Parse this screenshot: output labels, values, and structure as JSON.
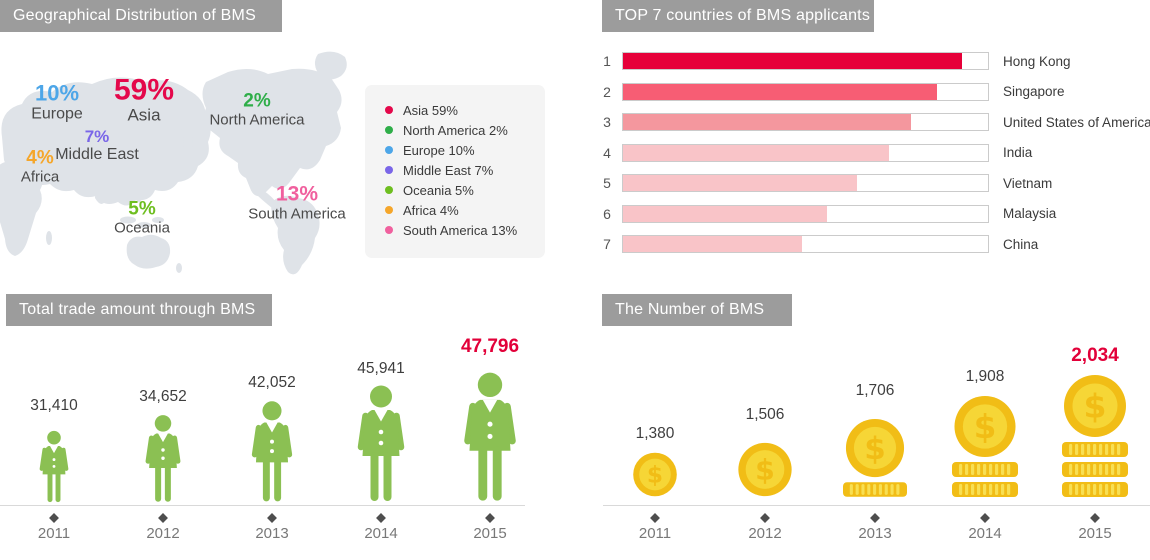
{
  "panels": {
    "geo": {
      "title": "Geographical Distribution of BMS",
      "map_labels": [
        {
          "name": "Europe",
          "pct": "10%",
          "color": "#4da6e8"
        },
        {
          "name": "Asia",
          "pct": "59%",
          "color": "#e4084b"
        },
        {
          "name": "North America",
          "pct": "2%",
          "color": "#2fae49"
        },
        {
          "name": "Middle East",
          "pct": "7%",
          "color": "#7a66e8"
        },
        {
          "name": "Africa",
          "pct": "4%",
          "color": "#f5a62a"
        },
        {
          "name": "Oceania",
          "pct": "5%",
          "color": "#6ebe20"
        },
        {
          "name": "South America",
          "pct": "13%",
          "color": "#f0609e"
        }
      ],
      "legend": [
        {
          "label": "Asia 59%",
          "color": "#e4084b"
        },
        {
          "label": "North America 2%",
          "color": "#2fae49"
        },
        {
          "label": "Europe 10%",
          "color": "#4da6e8"
        },
        {
          "label": "Middle East 7%",
          "color": "#7a66e8"
        },
        {
          "label": "Oceania 5%",
          "color": "#6ebe20"
        },
        {
          "label": "Africa 4%",
          "color": "#f5a62a"
        },
        {
          "label": "South America 13%",
          "color": "#f0609e"
        }
      ]
    },
    "top7": {
      "title": "TOP 7 countries of BMS applicants",
      "rows": [
        {
          "rank": "1",
          "country": "Hong Kong"
        },
        {
          "rank": "2",
          "country": "Singapore"
        },
        {
          "rank": "3",
          "country": "United States of America"
        },
        {
          "rank": "4",
          "country": "India"
        },
        {
          "rank": "5",
          "country": "Vietnam"
        },
        {
          "rank": "6",
          "country": "Malaysia"
        },
        {
          "rank": "7",
          "country": "China"
        }
      ]
    },
    "trade": {
      "title": "Total trade amount through BMS",
      "columns": [
        {
          "year": "2011",
          "value": "31,410",
          "highlight": false
        },
        {
          "year": "2012",
          "value": "34,652",
          "highlight": false
        },
        {
          "year": "2013",
          "value": "42,052",
          "highlight": false
        },
        {
          "year": "2014",
          "value": "45,941",
          "highlight": false
        },
        {
          "year": "2015",
          "value": "47,796",
          "highlight": true
        }
      ]
    },
    "number": {
      "title": "The Number of BMS",
      "columns": [
        {
          "year": "2011",
          "value": "1,380",
          "highlight": false
        },
        {
          "year": "2012",
          "value": "1,506",
          "highlight": false
        },
        {
          "year": "2013",
          "value": "1,706",
          "highlight": false
        },
        {
          "year": "2014",
          "value": "1,908",
          "highlight": false
        },
        {
          "year": "2015",
          "value": "2,034",
          "highlight": true
        }
      ]
    }
  },
  "icons": {
    "person": "person-pictogram-icon",
    "coin": "dollar-coin-icon",
    "coin_stack": "coin-stack-icon",
    "diamond": "diamond-marker-icon",
    "legend_dot": "legend-dot-icon"
  },
  "colors": {
    "title_bar_bg": "#9c9c9c",
    "map_fill": "#dfe3e8",
    "legend_bg": "#f4f4f4",
    "accent_red": "#e20039",
    "person_green": "#8bc053",
    "coin_gold": "#f1bd16",
    "coin_inner": "#f6d636",
    "stack_stripe": "#f8df52",
    "baseline": "#d9d9d9",
    "bar_track_border": "#cbcbcb",
    "bar_colors": [
      "#e60039",
      "#f75d74",
      "#f4979e",
      "#f9c4c8",
      "#f9c4c8",
      "#f9c4c8",
      "#f9c4c8"
    ]
  },
  "chart_data": [
    {
      "type": "pie",
      "title": "Geographical Distribution of BMS",
      "labels": [
        "Asia",
        "North America",
        "Europe",
        "Middle East",
        "Oceania",
        "Africa",
        "South America"
      ],
      "values": [
        59,
        2,
        10,
        7,
        5,
        4,
        13
      ],
      "unit": "%",
      "legend_position": "right",
      "render_style": "world-map-with-labels"
    },
    {
      "type": "bar",
      "title": "TOP 7 countries of BMS applicants",
      "orientation": "horizontal",
      "categories": [
        "Hong Kong",
        "Singapore",
        "United States of America",
        "India",
        "Vietnam",
        "Malaysia",
        "China"
      ],
      "ranks": [
        1,
        2,
        3,
        4,
        5,
        6,
        7
      ],
      "values_pct_est": [
        93,
        86,
        79,
        73,
        64,
        56,
        49
      ],
      "xlim": [
        0,
        100
      ],
      "grid": false
    },
    {
      "type": "bar",
      "title": "Total trade amount through BMS",
      "categories": [
        "2011",
        "2012",
        "2013",
        "2014",
        "2015"
      ],
      "values": [
        31410,
        34652,
        42052,
        45941,
        47796
      ],
      "render_style": "pictogram-person",
      "highlight_last": true
    },
    {
      "type": "bar",
      "title": "The Number of BMS",
      "categories": [
        "2011",
        "2012",
        "2013",
        "2014",
        "2015"
      ],
      "values": [
        1380,
        1506,
        1706,
        1908,
        2034
      ],
      "render_style": "pictogram-coins",
      "highlight_last": true
    }
  ]
}
